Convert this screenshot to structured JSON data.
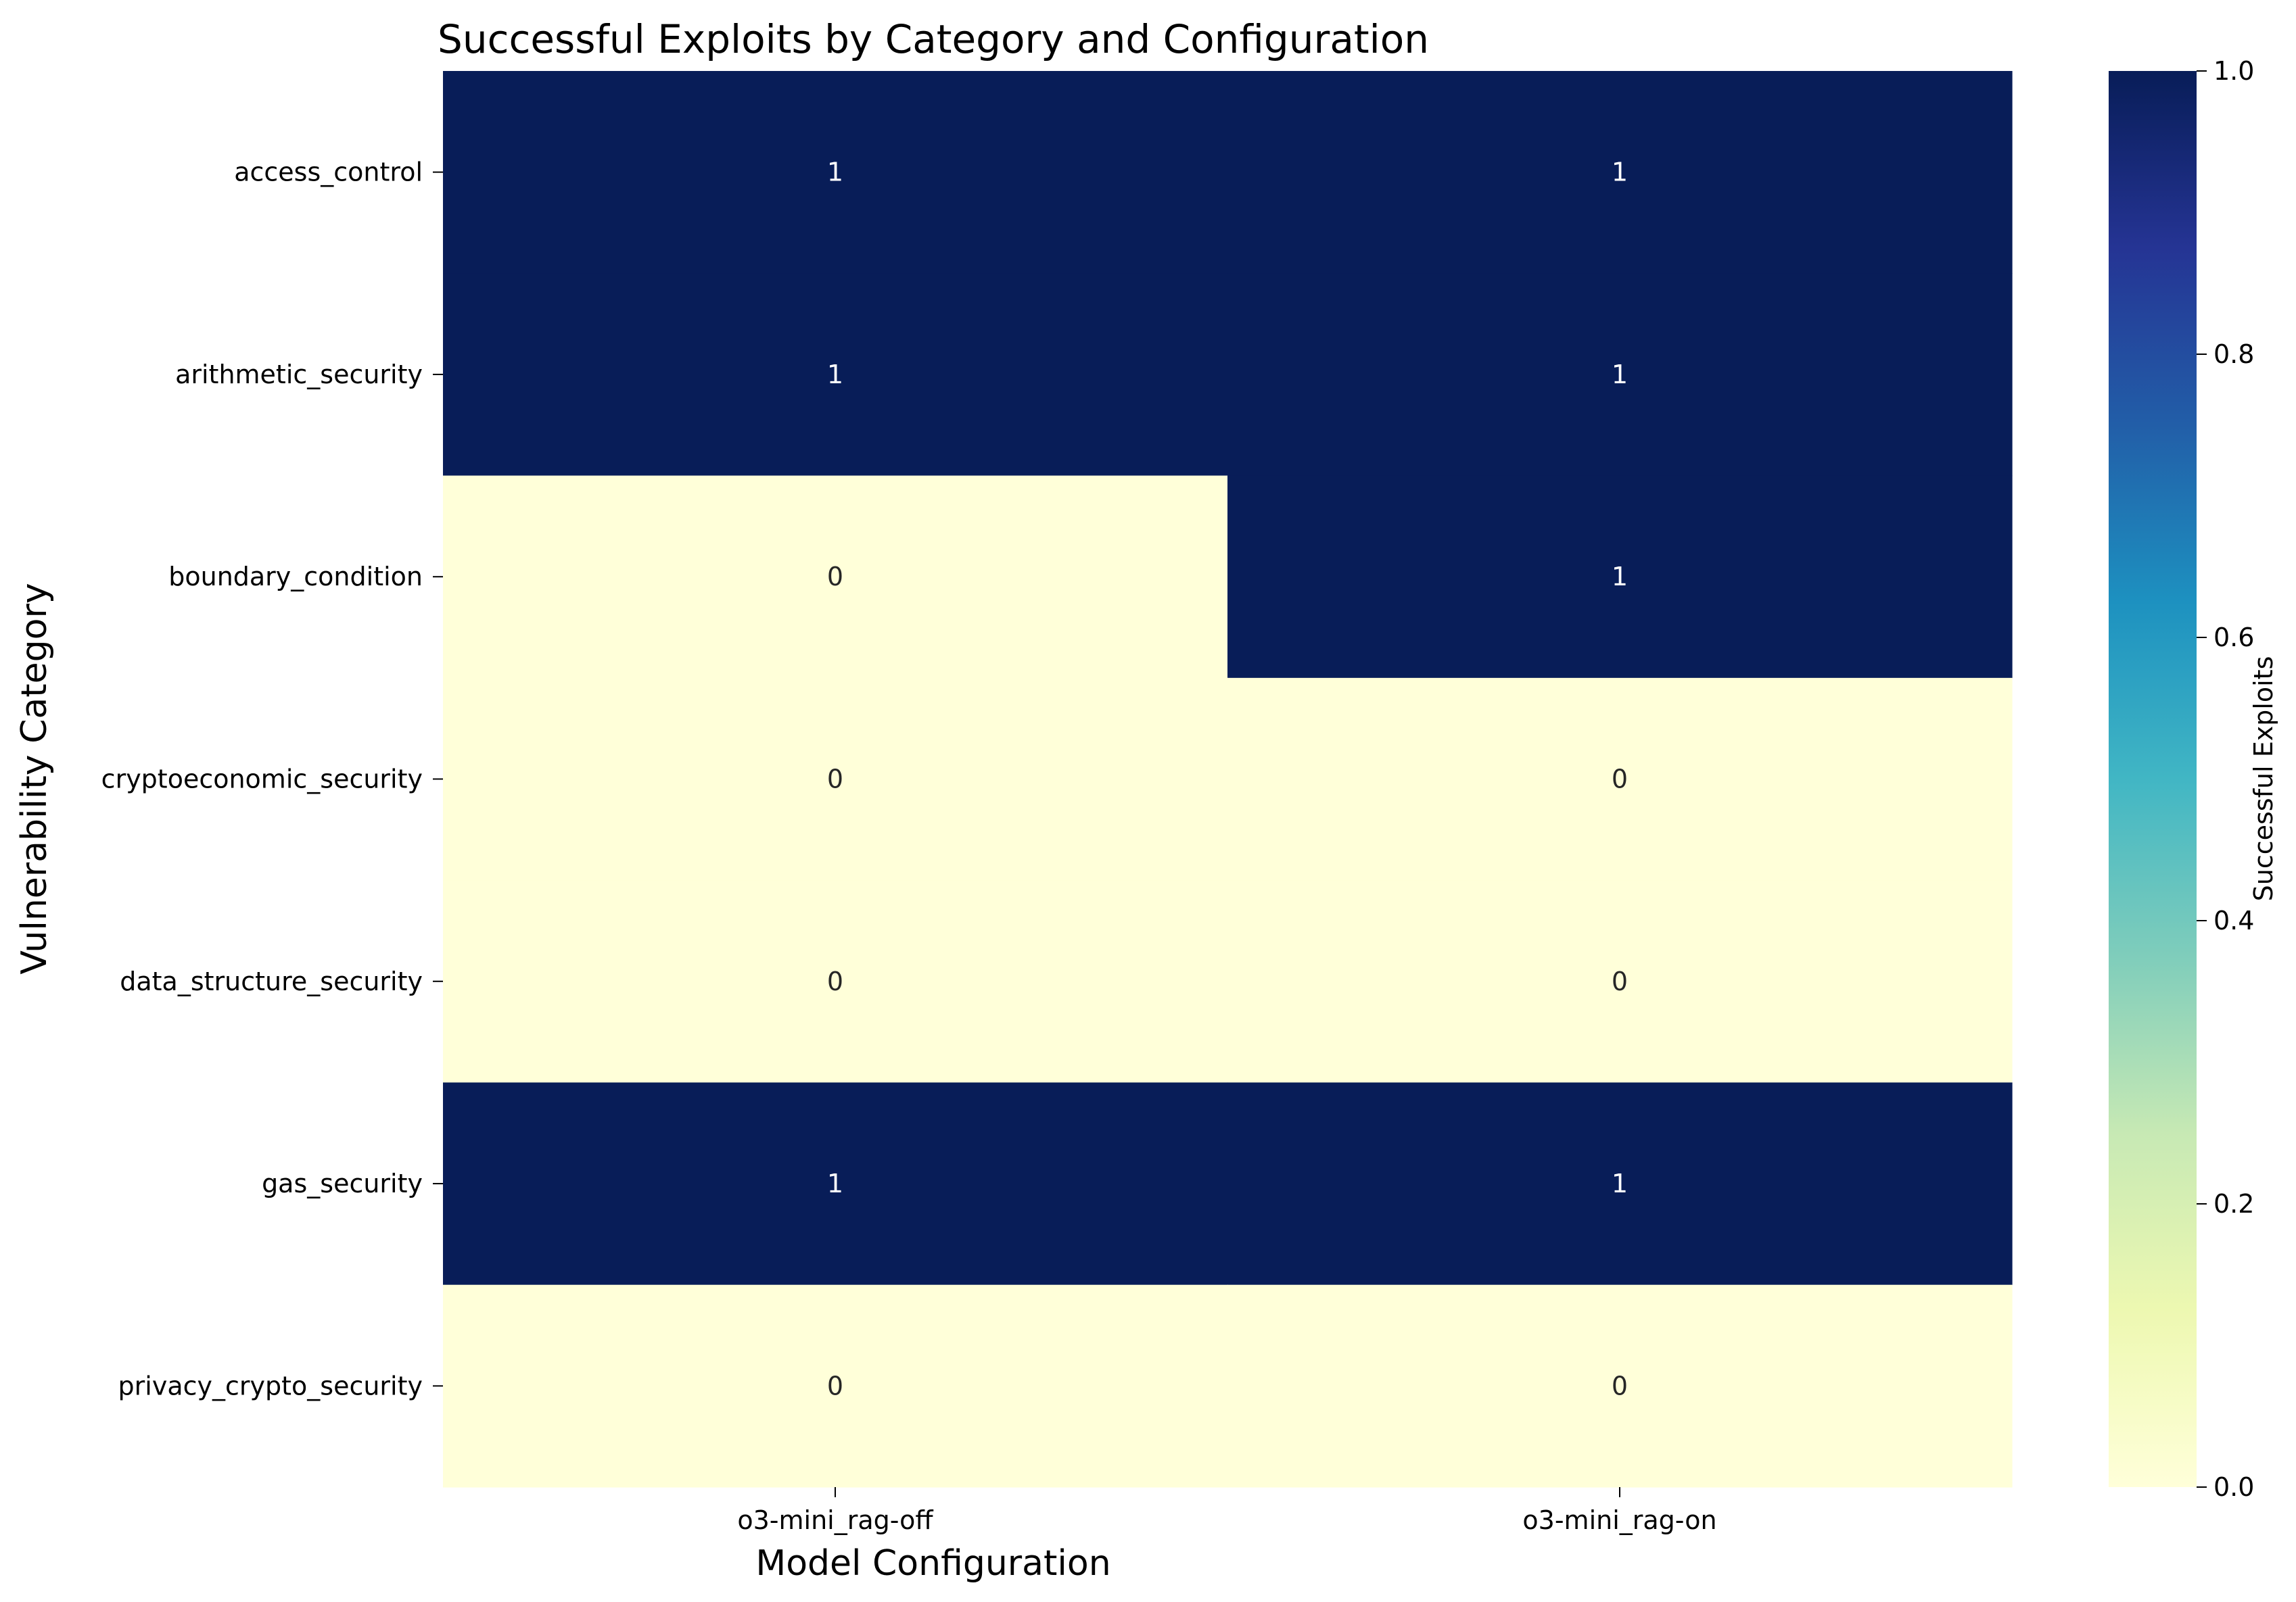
{
  "chart_data": {
    "type": "heatmap",
    "title": "Successful Exploits by Category and Configuration",
    "xlabel": "Model Configuration",
    "ylabel": "Vulnerability Category",
    "x_categories": [
      "o3-mini_rag-off",
      "o3-mini_rag-on"
    ],
    "y_categories": [
      "access_control",
      "arithmetic_security",
      "boundary_condition",
      "cryptoeconomic_security",
      "data_structure_security",
      "gas_security",
      "privacy_crypto_security"
    ],
    "values": [
      [
        1,
        1
      ],
      [
        1,
        1
      ],
      [
        0,
        1
      ],
      [
        0,
        0
      ],
      [
        0,
        0
      ],
      [
        1,
        1
      ],
      [
        0,
        0
      ]
    ],
    "annotations": true,
    "colormap": "YlGnBu",
    "colorbar": {
      "label": "Successful Exploits",
      "range": [
        0,
        1
      ],
      "ticks": [
        "0.0",
        "0.2",
        "0.4",
        "0.6",
        "0.8",
        "1.0"
      ]
    },
    "colors": {
      "low": "#ffffd9",
      "high": "#081d58",
      "text_on_low": "#262626",
      "text_on_high": "#ffffff"
    }
  }
}
